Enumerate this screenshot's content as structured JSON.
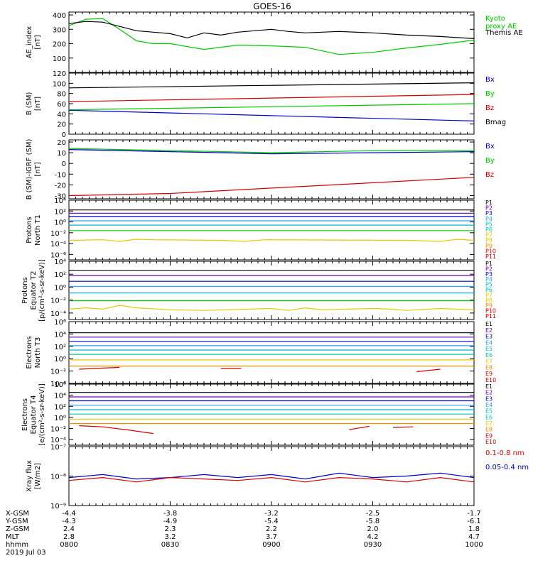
{
  "title": "GOES-16",
  "colors": {
    "black": "#000000",
    "green": "#00c800",
    "blue": "#0000c8",
    "red": "#d20000",
    "orange": "#f08c00",
    "gold": "#e6c800",
    "cyan": "#00b4d2",
    "lightblue": "#28a0f0",
    "teal": "#00c8aa",
    "purple": "#6e00b4",
    "darkred": "#b40000"
  },
  "chart_data": [
    {
      "type": "line",
      "ylabel": "AE_index\n[nT]",
      "yticks": [
        "400",
        "300",
        "200",
        "100"
      ],
      "ylim": [
        0,
        420
      ],
      "legend": [
        {
          "name": "Kyoto\nproxy AE",
          "color": "#00c800"
        },
        {
          "name": "Themis AE",
          "color": "#000000"
        }
      ],
      "series": [
        {
          "name": "Kyoto\nproxy AE",
          "color": "#00c800",
          "x": [
            0,
            5,
            10,
            15,
            20,
            25,
            30,
            40,
            50,
            60,
            70,
            80,
            90,
            100,
            110,
            120
          ],
          "y": [
            325,
            370,
            375,
            300,
            220,
            200,
            200,
            160,
            190,
            185,
            175,
            125,
            140,
            170,
            195,
            225
          ]
        },
        {
          "name": "Themis AE",
          "color": "#000000",
          "x": [
            0,
            5,
            10,
            15,
            20,
            25,
            30,
            35,
            40,
            45,
            50,
            60,
            65,
            70,
            80,
            90,
            100,
            110,
            120
          ],
          "y": [
            340,
            355,
            350,
            320,
            290,
            280,
            270,
            240,
            275,
            260,
            280,
            300,
            285,
            275,
            285,
            275,
            260,
            250,
            235
          ]
        }
      ]
    },
    {
      "type": "line",
      "ylabel": "B (SM)\n[nT]",
      "yticks": [
        "120",
        "100",
        "80",
        "60",
        "40",
        "20",
        "0"
      ],
      "ylim": [
        0,
        120
      ],
      "legend": [
        {
          "name": "Bx",
          "color": "#0000c8"
        },
        {
          "name": "By",
          "color": "#00c800"
        },
        {
          "name": "Bz",
          "color": "#d20000"
        },
        {
          "name": "Bmag",
          "color": "#000000"
        }
      ],
      "series": [
        {
          "name": "Bmag",
          "color": "#000000",
          "x": [
            0,
            120
          ],
          "y": [
            91,
            101
          ]
        },
        {
          "name": "Bz",
          "color": "#d20000",
          "x": [
            0,
            120
          ],
          "y": [
            64,
            78
          ]
        },
        {
          "name": "By",
          "color": "#00c800",
          "x": [
            0,
            120
          ],
          "y": [
            48,
            60
          ]
        },
        {
          "name": "Bx",
          "color": "#0000c8",
          "x": [
            0,
            120
          ],
          "y": [
            47,
            26
          ]
        }
      ]
    },
    {
      "type": "line",
      "ylabel": "B (SM)-IGRF (SM)\n[nT]",
      "yticks": [
        "20",
        "10",
        "0",
        "-10",
        "-20",
        "-30"
      ],
      "ylim": [
        -33,
        22
      ],
      "legend": [
        {
          "name": "Bx",
          "color": "#0000c8"
        },
        {
          "name": "By",
          "color": "#00c800"
        },
        {
          "name": "Bz",
          "color": "#d20000"
        }
      ],
      "series": [
        {
          "name": "Bx",
          "color": "#0000c8",
          "x": [
            0,
            30,
            60,
            90,
            120
          ],
          "y": [
            13,
            11,
            9,
            10,
            11
          ]
        },
        {
          "name": "By",
          "color": "#00c800",
          "x": [
            0,
            30,
            60,
            90,
            120
          ],
          "y": [
            14,
            12,
            10,
            12,
            12
          ]
        },
        {
          "name": "Bz",
          "color": "#d20000",
          "x": [
            0,
            30,
            60,
            90,
            120
          ],
          "y": [
            -30,
            -28,
            -23,
            -18,
            -13
          ]
        }
      ]
    },
    {
      "type": "line",
      "log": true,
      "ylabel": "Protons\nNorth T1",
      "ylim_exp": [
        -7,
        4
      ],
      "yticks_exp": [
        4,
        2,
        0,
        -2,
        -4,
        -6
      ],
      "legend": [
        {
          "name": "P1",
          "color": "#000000"
        },
        {
          "name": "P2",
          "color": "#6e00b4"
        },
        {
          "name": "P3",
          "color": "#0000c8"
        },
        {
          "name": "P4",
          "color": "#28a0f0"
        },
        {
          "name": "P5",
          "color": "#00b4d2"
        },
        {
          "name": "P6",
          "color": "#00c8aa"
        },
        {
          "name": "P7",
          "color": "#e6c800"
        },
        {
          "name": "P8",
          "color": "#e6c800"
        },
        {
          "name": "P9",
          "color": "#f08c00"
        },
        {
          "name": "P10",
          "color": "#d20000"
        },
        {
          "name": "P11",
          "color": "#b40000"
        }
      ],
      "series": [
        {
          "name": "P1",
          "color": "#000000",
          "x": [
            0,
            120
          ],
          "y": [
            2.2,
            2.2
          ]
        },
        {
          "name": "P2",
          "color": "#6e00b4",
          "x": [
            0,
            120
          ],
          "y": [
            1.6,
            1.6
          ]
        },
        {
          "name": "P3",
          "color": "#0000c8",
          "x": [
            0,
            120
          ],
          "y": [
            1.0,
            1.0
          ]
        },
        {
          "name": "P4",
          "color": "#28a0f0",
          "x": [
            0,
            120
          ],
          "y": [
            0.2,
            0.2
          ]
        },
        {
          "name": "P5",
          "color": "#00b4d2",
          "x": [
            0,
            120
          ],
          "y": [
            -0.6,
            -0.6
          ]
        },
        {
          "name": "P6",
          "color": "#00c800",
          "x": [
            0,
            120
          ],
          "y": [
            -1.6,
            -1.6
          ]
        },
        {
          "name": "P7",
          "color": "#e6c800",
          "x": [
            0,
            10,
            15,
            20,
            25,
            45,
            52,
            58,
            100,
            110,
            115,
            120
          ],
          "y": [
            -3.4,
            -3.3,
            -3.6,
            -3.2,
            -3.3,
            -3.4,
            -3.6,
            -3.3,
            -3.4,
            -3.6,
            -3.2,
            -3.4
          ]
        }
      ]
    },
    {
      "type": "line",
      "log": true,
      "ylabel": "Protons\nEquator T2\n[p/(cm²-s-sr-keV)]",
      "ylim_exp": [
        -5,
        4
      ],
      "yticks_exp": [
        4,
        2,
        0,
        -2,
        -4
      ],
      "legend": [
        {
          "name": "P1",
          "color": "#000000"
        },
        {
          "name": "P2",
          "color": "#6e00b4"
        },
        {
          "name": "P3",
          "color": "#0000c8"
        },
        {
          "name": "P4",
          "color": "#28a0f0"
        },
        {
          "name": "P5",
          "color": "#00b4d2"
        },
        {
          "name": "P6",
          "color": "#00c8aa"
        },
        {
          "name": "P7",
          "color": "#e6c800"
        },
        {
          "name": "P8",
          "color": "#e6c800"
        },
        {
          "name": "P9",
          "color": "#f08c00"
        },
        {
          "name": "P10",
          "color": "#d20000"
        },
        {
          "name": "P11",
          "color": "#b40000"
        }
      ],
      "series": [
        {
          "name": "P1",
          "color": "#000000",
          "x": [
            0,
            120
          ],
          "y": [
            2.6,
            2.6
          ]
        },
        {
          "name": "P2",
          "color": "#6e00b4",
          "x": [
            0,
            120
          ],
          "y": [
            1.8,
            1.8
          ]
        },
        {
          "name": "P3",
          "color": "#0000c8",
          "x": [
            0,
            120
          ],
          "y": [
            0.9,
            0.9
          ]
        },
        {
          "name": "P4",
          "color": "#28a0f0",
          "x": [
            0,
            120
          ],
          "y": [
            0.1,
            0.1
          ]
        },
        {
          "name": "P5",
          "color": "#00b4d2",
          "x": [
            0,
            120
          ],
          "y": [
            -0.9,
            -0.9
          ]
        },
        {
          "name": "P6",
          "color": "#00c800",
          "x": [
            0,
            120
          ],
          "y": [
            -2.1,
            -2.1
          ]
        },
        {
          "name": "P7",
          "color": "#e6c800",
          "x": [
            0,
            5,
            10,
            15,
            20,
            30,
            40,
            60,
            65,
            70,
            75,
            90,
            95,
            100,
            110,
            120
          ],
          "y": [
            -3.4,
            -3.2,
            -3.4,
            -2.8,
            -3.2,
            -3.5,
            -3.6,
            -3.3,
            -3.6,
            -3.2,
            -3.5,
            -3.3,
            -3.4,
            -3.6,
            -3.3,
            -3.5
          ]
        }
      ]
    },
    {
      "type": "line",
      "log": true,
      "ylabel": "Electrons\nNorth T3",
      "ylim_exp": [
        -4,
        6
      ],
      "yticks_exp": [
        6,
        4,
        2,
        0,
        -2,
        -4
      ],
      "legend": [
        {
          "name": "E1",
          "color": "#000000"
        },
        {
          "name": "E2",
          "color": "#6e00b4"
        },
        {
          "name": "E3",
          "color": "#0000c8"
        },
        {
          "name": "E4",
          "color": "#28a0f0"
        },
        {
          "name": "E5",
          "color": "#00b4d2"
        },
        {
          "name": "E6",
          "color": "#00c8aa"
        },
        {
          "name": "E7",
          "color": "#e6c800"
        },
        {
          "name": "E8",
          "color": "#f08c00"
        },
        {
          "name": "E9",
          "color": "#d20000"
        },
        {
          "name": "E10",
          "color": "#b40000"
        }
      ],
      "series": [
        {
          "name": "E1",
          "color": "#000000",
          "x": [
            0,
            120
          ],
          "y": [
            4.2,
            4.2
          ]
        },
        {
          "name": "E2",
          "color": "#6e00b4",
          "x": [
            0,
            120
          ],
          "y": [
            3.5,
            3.5
          ]
        },
        {
          "name": "E3",
          "color": "#0000c8",
          "x": [
            0,
            120
          ],
          "y": [
            2.8,
            2.8
          ]
        },
        {
          "name": "E4",
          "color": "#28a0f0",
          "x": [
            0,
            120
          ],
          "y": [
            2.1,
            2.1
          ]
        },
        {
          "name": "E5",
          "color": "#00b4d2",
          "x": [
            0,
            120
          ],
          "y": [
            1.4,
            1.4
          ]
        },
        {
          "name": "E6",
          "color": "#00c8aa",
          "x": [
            0,
            120
          ],
          "y": [
            0.7,
            0.7
          ]
        },
        {
          "name": "E7",
          "color": "#e6c800",
          "x": [
            0,
            120
          ],
          "y": [
            -0.2,
            -0.2
          ]
        },
        {
          "name": "E8",
          "color": "#f08c00",
          "x": [
            0,
            120
          ],
          "y": [
            -1.2,
            -1.2
          ]
        },
        {
          "name": "E9a",
          "color": "#d20000",
          "x": [
            3,
            15
          ],
          "y": [
            -1.7,
            -1.4
          ]
        },
        {
          "name": "E9b",
          "color": "#d20000",
          "x": [
            45,
            51
          ],
          "y": [
            -1.6,
            -1.6
          ]
        },
        {
          "name": "E9c",
          "color": "#d20000",
          "x": [
            103,
            110
          ],
          "y": [
            -2.1,
            -1.7
          ]
        }
      ]
    },
    {
      "type": "line",
      "log": true,
      "ylabel": "Electrons\nEquator T4\n[e/(cm²-s-sr-keV)]",
      "ylim_exp": [
        -5,
        6
      ],
      "yticks_exp": [
        6,
        4,
        2,
        0,
        -2,
        -4
      ],
      "legend": [
        {
          "name": "E1",
          "color": "#000000"
        },
        {
          "name": "E2",
          "color": "#6e00b4"
        },
        {
          "name": "E3",
          "color": "#0000c8"
        },
        {
          "name": "E4",
          "color": "#28a0f0"
        },
        {
          "name": "E5",
          "color": "#00b4d2"
        },
        {
          "name": "E6",
          "color": "#00c8aa"
        },
        {
          "name": "E7",
          "color": "#e6c800"
        },
        {
          "name": "E8",
          "color": "#f08c00"
        },
        {
          "name": "E9",
          "color": "#d20000"
        },
        {
          "name": "E10",
          "color": "#b40000"
        }
      ],
      "series": [
        {
          "name": "E1",
          "color": "#000000",
          "x": [
            0,
            120
          ],
          "y": [
            4.5,
            4.5
          ]
        },
        {
          "name": "E2",
          "color": "#6e00b4",
          "x": [
            0,
            120
          ],
          "y": [
            3.7,
            3.7
          ]
        },
        {
          "name": "E3",
          "color": "#0000c8",
          "x": [
            0,
            120
          ],
          "y": [
            3.0,
            3.0
          ]
        },
        {
          "name": "E4",
          "color": "#28a0f0",
          "x": [
            0,
            120
          ],
          "y": [
            2.2,
            2.2
          ]
        },
        {
          "name": "E5",
          "color": "#00b4d2",
          "x": [
            0,
            120
          ],
          "y": [
            1.4,
            1.4
          ]
        },
        {
          "name": "E6",
          "color": "#00c8aa",
          "x": [
            0,
            120
          ],
          "y": [
            0.6,
            0.6
          ]
        },
        {
          "name": "E7",
          "color": "#e6c800",
          "x": [
            0,
            120
          ],
          "y": [
            -0.3,
            -0.3
          ]
        },
        {
          "name": "E8",
          "color": "#f08c00",
          "x": [
            0,
            120
          ],
          "y": [
            -1.1,
            -1.1
          ]
        },
        {
          "name": "E9a",
          "color": "#d20000",
          "x": [
            3,
            10,
            18,
            25
          ],
          "y": [
            -1.5,
            -1.7,
            -2.3,
            -2.9
          ]
        },
        {
          "name": "E9b",
          "color": "#d20000",
          "x": [
            83,
            89
          ],
          "y": [
            -2.2,
            -1.6
          ]
        },
        {
          "name": "E9c",
          "color": "#d20000",
          "x": [
            96,
            102
          ],
          "y": [
            -1.8,
            -1.7
          ]
        }
      ]
    },
    {
      "type": "line",
      "log": true,
      "ylabel": "Xray flux\n[W/m2]",
      "ylim_exp": [
        -9,
        -7
      ],
      "yticks_exp": [
        -7,
        -8,
        -9
      ],
      "legend": [
        {
          "name": "0.1-0.8 nm",
          "color": "#d20000"
        },
        {
          "name": "0.05-0.4 nm",
          "color": "#0000c8"
        }
      ],
      "series": [
        {
          "name": "0.05-0.4 nm",
          "color": "#0000c8",
          "x": [
            0,
            10,
            20,
            30,
            40,
            50,
            60,
            70,
            80,
            90,
            100,
            110,
            120
          ],
          "y": [
            -8.05,
            -7.95,
            -8.1,
            -8.05,
            -7.95,
            -8.05,
            -7.95,
            -8.1,
            -7.9,
            -8.05,
            -8.0,
            -7.9,
            -8.05
          ]
        },
        {
          "name": "0.1-0.8 nm",
          "color": "#d20000",
          "x": [
            0,
            10,
            20,
            30,
            40,
            50,
            60,
            70,
            80,
            90,
            100,
            110,
            120
          ],
          "y": [
            -8.15,
            -8.05,
            -8.2,
            -8.05,
            -8.1,
            -8.15,
            -8.05,
            -8.2,
            -8.05,
            -8.1,
            -8.2,
            -8.05,
            -8.2
          ]
        }
      ]
    }
  ],
  "xaxis": {
    "row_labels": [
      "X-GSM",
      "Y-GSM",
      "Z-GSM",
      "MLT",
      "hhmm",
      "2019 Jul 03"
    ],
    "ticks": [
      {
        "x": 0,
        "cols": [
          "-4.4",
          "-4.3",
          "2.4",
          "2.8",
          "0800"
        ]
      },
      {
        "x": 30,
        "cols": [
          "-3.8",
          "-4.9",
          "2.3",
          "3.2",
          "0830"
        ]
      },
      {
        "x": 60,
        "cols": [
          "-3.2",
          "-5.4",
          "2.2",
          "3.7",
          "0900"
        ]
      },
      {
        "x": 90,
        "cols": [
          "-2.5",
          "-5.8",
          "2.0",
          "4.2",
          "0930"
        ]
      },
      {
        "x": 120,
        "cols": [
          "-1.7",
          "-6.1",
          "1.8",
          "4.7",
          "1000"
        ]
      }
    ]
  }
}
